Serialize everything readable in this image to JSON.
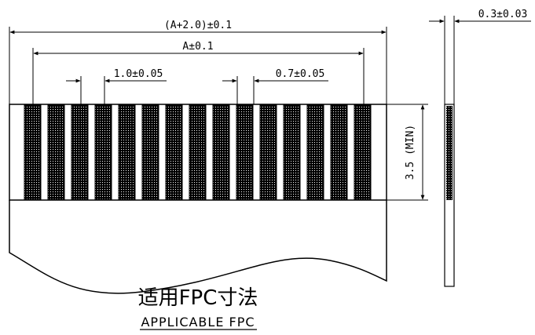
{
  "dimensions": {
    "overall_width": "(A+2.0)±0.1",
    "contact_span": "A±0.1",
    "pitch": "1.0±0.05",
    "contact_width": "0.7±0.05",
    "min_length": "3.5 (MIN)",
    "thickness": "0.3±0.03"
  },
  "titles": {
    "cn": "适用FPC寸法",
    "en": "APPLICABLE FPC"
  },
  "contacts": {
    "count": 15
  },
  "colors": {
    "ink": "#000000",
    "background": "#ffffff"
  }
}
